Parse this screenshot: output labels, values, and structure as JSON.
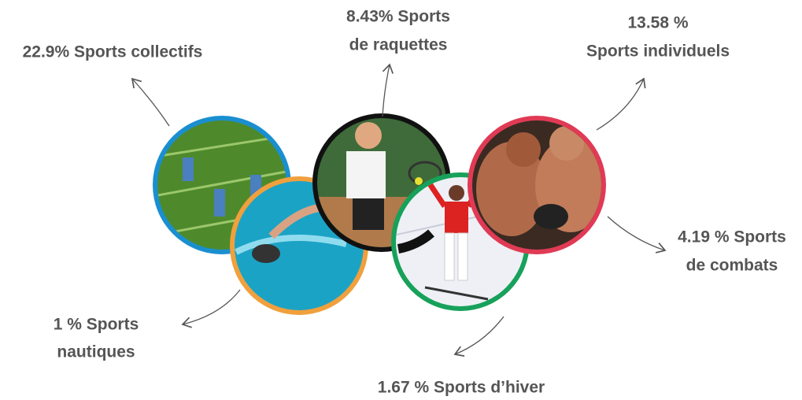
{
  "labels": [
    {
      "lines": [
        "22.9% Sports collectifs"
      ]
    },
    {
      "lines": [
        "8.43% Sports",
        "de raquettes"
      ]
    },
    {
      "lines": [
        "13.58 %",
        "Sports individuels"
      ]
    },
    {
      "lines": [
        "4.19 % Sports",
        "de combats"
      ]
    },
    {
      "lines": [
        "1 % Sports",
        "nautiques"
      ]
    },
    {
      "lines": [
        "1.67 % Sports d’hiver"
      ]
    }
  ]
}
